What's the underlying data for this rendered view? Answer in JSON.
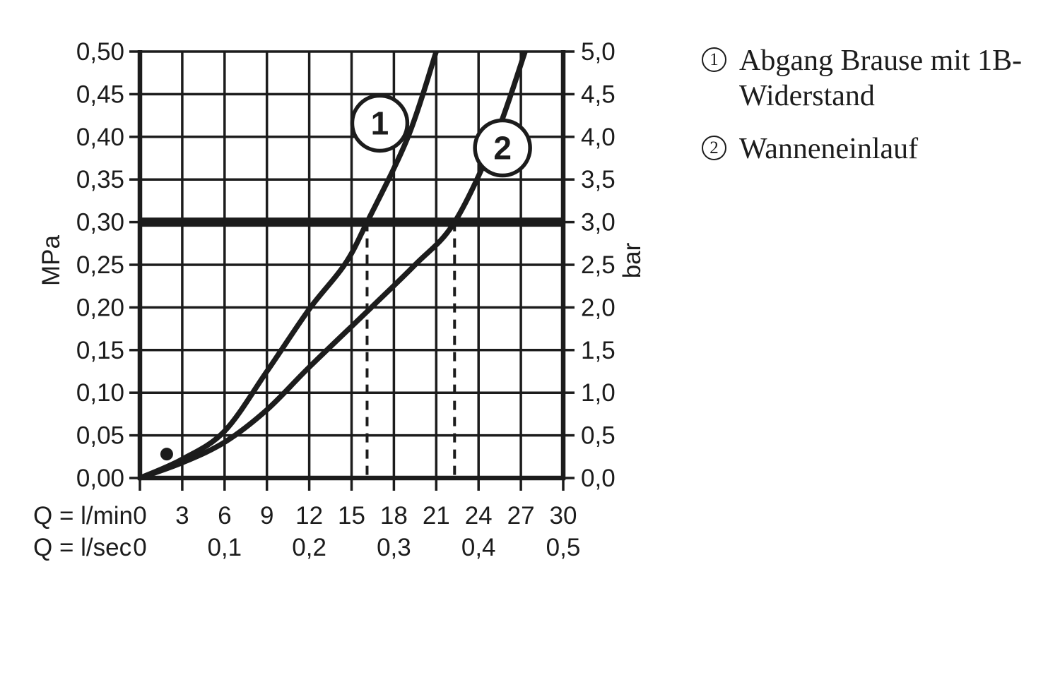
{
  "chart_data": {
    "type": "line",
    "title": "",
    "x_axis": {
      "range_lmin": [
        0,
        30
      ],
      "gridline_every_lmin": 3,
      "unit_rows": [
        {
          "label": "Q = l/min",
          "ticks": [
            {
              "q": 0,
              "text": "0"
            },
            {
              "q": 3,
              "text": "3"
            },
            {
              "q": 6,
              "text": "6"
            },
            {
              "q": 9,
              "text": "9"
            },
            {
              "q": 12,
              "text": "12"
            },
            {
              "q": 15,
              "text": "15"
            },
            {
              "q": 18,
              "text": "18"
            },
            {
              "q": 21,
              "text": "21"
            },
            {
              "q": 24,
              "text": "24"
            },
            {
              "q": 27,
              "text": "27"
            },
            {
              "q": 30,
              "text": "30"
            }
          ]
        },
        {
          "label": "Q = l/sec",
          "ticks": [
            {
              "q": 0,
              "text": "0"
            },
            {
              "q": 6,
              "text": "0,1"
            },
            {
              "q": 12,
              "text": "0,2"
            },
            {
              "q": 18,
              "text": "0,3"
            },
            {
              "q": 24,
              "text": "0,4"
            },
            {
              "q": 30,
              "text": "0,5"
            }
          ]
        }
      ]
    },
    "y_axis_left": {
      "unit": "MPa",
      "range": [
        0,
        0.5
      ],
      "ticks": [
        "0,50",
        "0,45",
        "0,40",
        "0,35",
        "0,30",
        "0,25",
        "0,20",
        "0,15",
        "0,10",
        "0,05",
        "0,00"
      ]
    },
    "y_axis_right": {
      "unit": "bar",
      "range": [
        0,
        5
      ],
      "ticks": [
        "5,0",
        "4,5",
        "4,0",
        "3,5",
        "3,0",
        "2,5",
        "2,0",
        "1,5",
        "1,0",
        "0,5",
        "0,0"
      ]
    },
    "reference_line_bar": 3.0,
    "guides_lmin": [
      16.1,
      22.3
    ],
    "series": [
      {
        "label_number": "1",
        "name": "Abgang Brause mit 1B-Widerstand",
        "points_lmin_bar": [
          [
            0,
            0
          ],
          [
            3,
            0.22
          ],
          [
            6,
            0.55
          ],
          [
            9,
            1.25
          ],
          [
            12,
            1.98
          ],
          [
            14.5,
            2.5
          ],
          [
            16.1,
            3.0
          ],
          [
            19,
            4.0
          ],
          [
            21,
            5.0
          ]
        ],
        "label_pos": {
          "lmin": 17.0,
          "bar": 4.16
        }
      },
      {
        "label_number": "2",
        "name": "Wanneneinlauf",
        "points_lmin_bar": [
          [
            0,
            0
          ],
          [
            3,
            0.18
          ],
          [
            6,
            0.42
          ],
          [
            9,
            0.8
          ],
          [
            12,
            1.3
          ],
          [
            16.4,
            2.0
          ],
          [
            19.5,
            2.5
          ],
          [
            22.3,
            3.0
          ],
          [
            25.2,
            4.0
          ],
          [
            27.3,
            5.0
          ]
        ],
        "label_pos": {
          "lmin": 25.7,
          "bar": 3.87
        }
      }
    ],
    "point_marker": {
      "lmin": 1.9,
      "bar": 0.28
    }
  },
  "legend": {
    "items": [
      {
        "number": "1",
        "label": "Abgang Brause mit 1B-Widerstand"
      },
      {
        "number": "2",
        "label": "Wanneneinlauf"
      }
    ]
  },
  "colors": {
    "ink": "#1c1c1c",
    "background": "#ffffff"
  }
}
